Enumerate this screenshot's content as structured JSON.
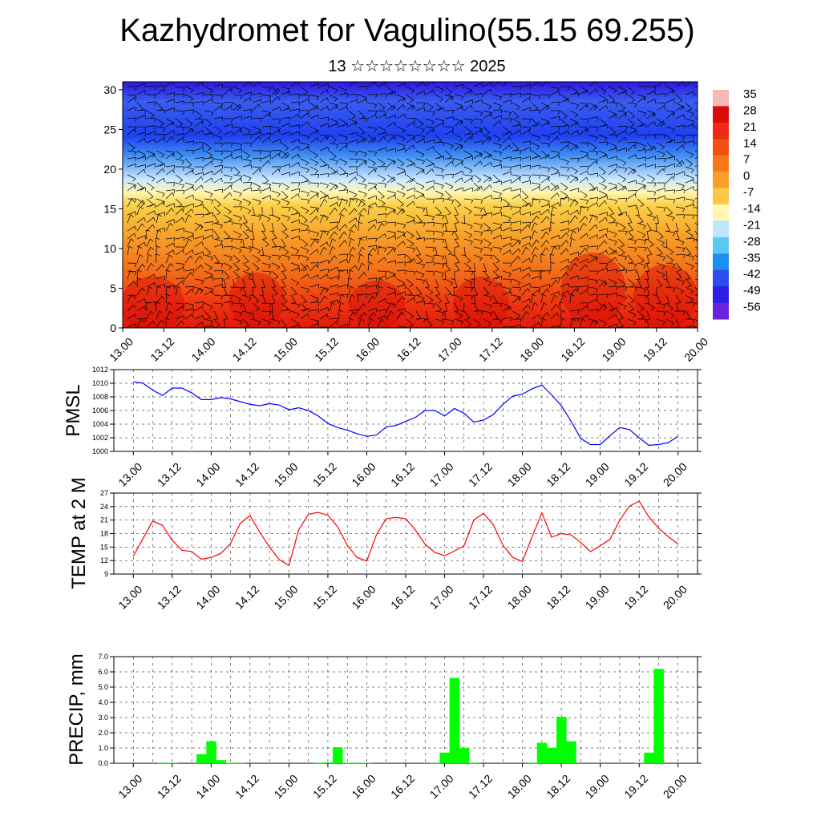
{
  "title": "Kazhydromet for Vagulino(55.15 69.255)",
  "subtitle": "13 ☆☆☆☆☆☆☆☆ 2025",
  "colors": {
    "pressure_line": "#0000ff",
    "temperature_line": "#ff0000",
    "precip_bars": "#00ff00",
    "wind_barbs": "#000000"
  },
  "chart_data": [
    {
      "type": "heatmap",
      "title": "",
      "xlabel": "",
      "ylabel": "",
      "x_ticks": [
        "13.00",
        "13.12",
        "14.00",
        "14.12",
        "15.00",
        "15.12",
        "16.00",
        "16.12",
        "17.00",
        "17.12",
        "18.00",
        "18.12",
        "19.00",
        "19.12",
        "20.00"
      ],
      "y_ticks": [
        0,
        5,
        10,
        15,
        20,
        25,
        30
      ],
      "ylim": [
        0,
        31
      ],
      "colorbar_labels": [
        "35",
        "28",
        "21",
        "14",
        "7",
        "0",
        "-7",
        "-14",
        "-21",
        "-28",
        "-35",
        "-42",
        "-49",
        "-56"
      ],
      "colorbar_colors": [
        "#f6b8b8",
        "#dd0a0a",
        "#ee2a10",
        "#f34f12",
        "#f6781b",
        "#f8a02a",
        "#fbc84a",
        "#fff7b3",
        "#bde6ff",
        "#5ec8f5",
        "#1f8ef0",
        "#2a4df0",
        "#2a20e8",
        "#6a22dd"
      ],
      "description_bands": [
        {
          "level_from": 0,
          "level_to": 8,
          "value": 25
        },
        {
          "level_from": 8,
          "level_to": 14,
          "value": 10
        },
        {
          "level_from": 14,
          "level_to": 17,
          "value": -5
        },
        {
          "level_from": 17,
          "level_to": 22,
          "value": -35
        },
        {
          "level_from": 22,
          "level_to": 31,
          "value": -55
        }
      ],
      "overlay": "wind barbs"
    },
    {
      "type": "line",
      "ylabel": "PMSL",
      "ylim": [
        1000,
        1012
      ],
      "y_ticks": [
        1000,
        1002,
        1004,
        1006,
        1008,
        1010,
        1012
      ],
      "x_ticks": [
        "13.00",
        "13.12",
        "14.00",
        "14.12",
        "15.00",
        "15.12",
        "16.00",
        "16.12",
        "17.00",
        "17.12",
        "18.00",
        "18.12",
        "19.00",
        "19.12",
        "20.00"
      ],
      "x_hours": [
        0,
        3,
        6,
        9,
        12,
        15,
        18,
        21,
        24,
        27,
        30,
        33,
        36,
        39,
        42,
        45,
        48,
        51,
        54,
        57,
        60,
        63,
        66,
        69,
        72,
        75,
        78,
        81,
        84,
        87,
        90,
        93,
        96,
        99,
        102,
        105,
        108,
        111,
        114,
        117,
        120,
        123,
        126,
        129,
        132,
        135,
        138,
        141,
        144,
        147,
        150,
        153,
        156,
        159,
        162,
        165,
        168
      ],
      "series": [
        {
          "values": [
            1010.2,
            1010.0,
            1009.0,
            1008.2,
            1009.3,
            1009.3,
            1008.6,
            1007.6,
            1007.6,
            1007.9,
            1007.7,
            1007.3,
            1006.9,
            1006.7,
            1007.0,
            1006.8,
            1006.1,
            1006.4,
            1006.0,
            1005.2,
            1004.1,
            1003.5,
            1003.1,
            1002.6,
            1002.2,
            1002.4,
            1003.6,
            1003.8,
            1004.4,
            1005.0,
            1006.0,
            1006.0,
            1005.2,
            1006.3,
            1005.6,
            1004.3,
            1004.6,
            1005.4,
            1006.9,
            1008.1,
            1008.4,
            1009.2,
            1009.7,
            1008.3,
            1006.7,
            1004.4,
            1001.9,
            1001.0,
            1001.0,
            1002.3,
            1003.5,
            1003.2,
            1002.0,
            1000.9,
            1001.0,
            1001.3,
            1002.2
          ]
        }
      ]
    },
    {
      "type": "line",
      "ylabel": "TEMP at 2 M",
      "ylim": [
        9,
        27
      ],
      "y_ticks": [
        9,
        12,
        15,
        18,
        21,
        24,
        27
      ],
      "x_ticks": [
        "13.00",
        "13.12",
        "14.00",
        "14.12",
        "15.00",
        "15.12",
        "16.00",
        "16.12",
        "17.00",
        "17.12",
        "18.00",
        "18.12",
        "19.00",
        "19.12",
        "20.00"
      ],
      "x_hours": [
        0,
        6,
        9,
        12,
        15,
        18,
        21,
        24,
        27,
        30,
        33,
        36,
        39,
        42,
        45,
        48,
        51,
        54,
        57,
        60,
        63,
        66,
        69,
        72,
        75,
        78,
        81,
        84,
        87,
        90,
        93,
        96,
        99,
        102,
        105,
        108,
        111,
        114,
        117,
        120,
        123,
        126,
        129,
        132,
        135,
        138,
        141,
        144,
        147,
        150,
        153,
        156,
        159,
        162,
        165,
        168
      ],
      "series": [
        {
          "values": [
            13.0,
            20.8,
            19.8,
            16.5,
            14.3,
            14.0,
            12.3,
            12.7,
            13.6,
            15.8,
            20.3,
            22.0,
            18.3,
            15.0,
            12.2,
            10.9,
            18.8,
            22.3,
            22.7,
            22.1,
            19.5,
            15.4,
            12.7,
            11.9,
            17.8,
            21.3,
            21.6,
            21.3,
            18.8,
            15.6,
            13.8,
            13.1,
            14.1,
            15.3,
            21.0,
            22.5,
            20.0,
            15.4,
            12.7,
            11.8,
            17.3,
            22.6,
            17.2,
            18.0,
            17.7,
            16.0,
            14.0,
            15.3,
            16.7,
            21.0,
            24.1,
            25.2,
            21.7,
            19.2,
            17.3,
            15.7
          ]
        }
      ]
    },
    {
      "type": "bar",
      "ylabel": "PRECIP, mm",
      "ylim": [
        0,
        7
      ],
      "y_ticks": [
        "0.0",
        "1.0",
        "2.0",
        "3.0",
        "4.0",
        "5.0",
        "6.0",
        "7.0"
      ],
      "x_ticks": [
        "13.00",
        "13.12",
        "14.00",
        "14.12",
        "15.00",
        "15.12",
        "16.00",
        "16.12",
        "17.00",
        "17.12",
        "18.00",
        "18.12",
        "19.00",
        "19.12",
        "20.00"
      ],
      "x_hours": [
        9,
        12,
        21,
        24,
        27,
        30,
        33,
        57,
        60,
        63,
        66,
        69,
        72,
        93,
        96,
        99,
        102,
        105,
        123,
        126,
        129,
        132,
        135,
        156,
        159,
        162
      ],
      "values": [
        0.02,
        0.02,
        0.6,
        1.45,
        0.2,
        0.02,
        0.02,
        0.03,
        0.05,
        1.05,
        0.02,
        0.02,
        0.02,
        0.02,
        0.7,
        5.6,
        1.0,
        0.02,
        0.02,
        1.35,
        1.0,
        3.05,
        1.45,
        0.02,
        0.7,
        6.2
      ]
    }
  ]
}
